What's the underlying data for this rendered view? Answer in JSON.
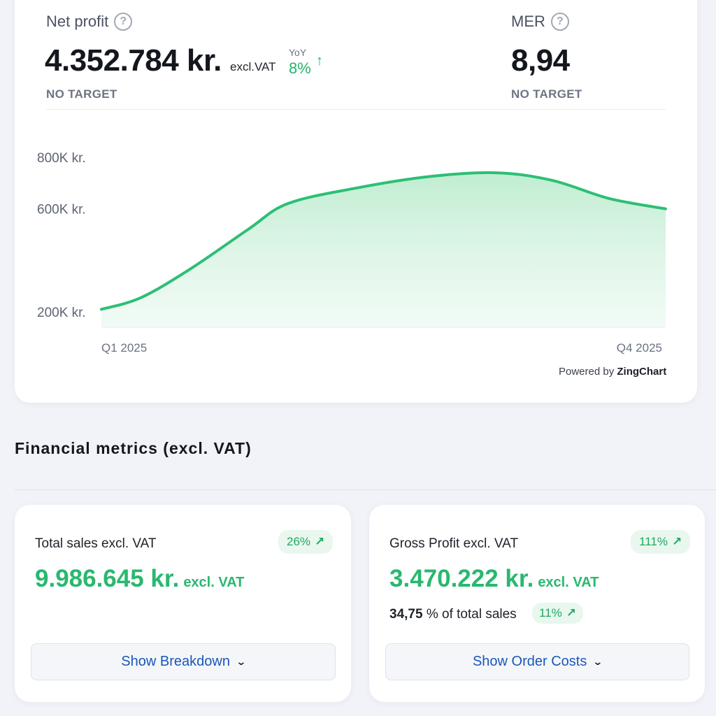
{
  "net_profit": {
    "label": "Net profit",
    "value": "4.352.784 kr.",
    "suffix": "excl.VAT",
    "yoy_label": "YoY",
    "yoy_value": "8%",
    "yoy_arrow": "↑",
    "target": "NO TARGET"
  },
  "mer": {
    "label": "MER",
    "value": "8,94",
    "target": "NO TARGET"
  },
  "help_glyph": "?",
  "chart_data": {
    "type": "area",
    "x_start_label": "Q1 2025",
    "x_end_label": "Q4 2025",
    "y_tick_labels": [
      "800K kr.",
      "600K kr.",
      "200K kr."
    ],
    "y_ticks": [
      800000,
      600000,
      200000
    ],
    "points": [
      {
        "x": 0.0,
        "y": 210000
      },
      {
        "x": 0.07,
        "y": 255000
      },
      {
        "x": 0.16,
        "y": 370000
      },
      {
        "x": 0.26,
        "y": 520000
      },
      {
        "x": 0.33,
        "y": 620000
      },
      {
        "x": 0.45,
        "y": 680000
      },
      {
        "x": 0.58,
        "y": 725000
      },
      {
        "x": 0.7,
        "y": 740000
      },
      {
        "x": 0.8,
        "y": 710000
      },
      {
        "x": 0.9,
        "y": 640000
      },
      {
        "x": 1.0,
        "y": 600000
      }
    ],
    "line_color": "#2dbf75",
    "fill_color": "#c8f0da"
  },
  "powered_by": {
    "prefix": "Powered by",
    "brand": "ZingChart"
  },
  "section_title": "Financial metrics (excl. VAT)",
  "sales_card": {
    "label": "Total sales excl. VAT",
    "badge": "26%",
    "badge_arrow": "↗",
    "value": "9.986.645 kr.",
    "unit": "excl. VAT",
    "button": "Show Breakdown",
    "chevron": "⌄"
  },
  "profit_card": {
    "label": "Gross Profit excl. VAT",
    "badge": "111%",
    "badge_arrow": "↗",
    "value": "3.470.222 kr.",
    "unit": "excl. VAT",
    "share_value": "34,75",
    "share_text": "% of total sales",
    "share_badge": "11%",
    "share_arrow": "↗",
    "button": "Show Order Costs",
    "chevron": "⌄"
  },
  "colors": {
    "accent_green": "#29b86f",
    "link_blue": "#1b57b8"
  }
}
